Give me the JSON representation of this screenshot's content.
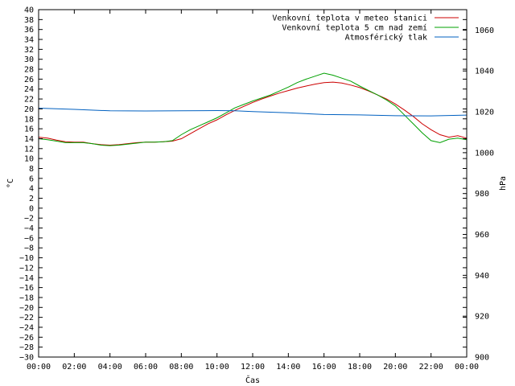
{
  "chart_data": {
    "type": "line",
    "xlabel": "Čas",
    "ylabel": "°C",
    "y2label": "hPa",
    "x_ticks": [
      "00:00",
      "02:00",
      "04:00",
      "06:00",
      "08:00",
      "10:00",
      "12:00",
      "14:00",
      "16:00",
      "18:00",
      "20:00",
      "22:00",
      "00:00"
    ],
    "xlim": [
      0,
      24
    ],
    "ylim": [
      -30,
      40
    ],
    "y_step": 2,
    "y2lim": [
      900,
      1070
    ],
    "y2_ticks": [
      900,
      920,
      940,
      960,
      980,
      1000,
      1020,
      1040,
      1060
    ],
    "legend_position": "top-right",
    "series": [
      {
        "name": "Venkovní teplota v meteo stanici",
        "axis": "y",
        "color": "#cc0000",
        "x": [
          0,
          0.5,
          1,
          1.5,
          2,
          2.5,
          3,
          3.5,
          4,
          4.5,
          5,
          5.5,
          6,
          6.5,
          7,
          7.5,
          8,
          8.5,
          9,
          9.5,
          10,
          10.5,
          11,
          11.5,
          12,
          12.5,
          13,
          13.5,
          14,
          14.5,
          15,
          15.5,
          16,
          16.5,
          17,
          17.5,
          18,
          18.5,
          19,
          19.5,
          20,
          20.5,
          21,
          21.5,
          22,
          22.5,
          23,
          23.5,
          24
        ],
        "y": [
          14.3,
          14.1,
          13.7,
          13.4,
          13.3,
          13.3,
          13.0,
          12.8,
          12.7,
          12.8,
          13.0,
          13.2,
          13.3,
          13.3,
          13.4,
          13.5,
          14.0,
          15.0,
          16.0,
          17.0,
          17.8,
          18.8,
          19.7,
          20.5,
          21.3,
          22.0,
          22.6,
          23.2,
          23.7,
          24.2,
          24.6,
          25.0,
          25.3,
          25.4,
          25.2,
          24.8,
          24.3,
          23.6,
          22.8,
          22.0,
          21.0,
          19.8,
          18.5,
          17.0,
          15.8,
          14.8,
          14.3,
          14.6,
          14.1
        ]
      },
      {
        "name": "Venkovní teplota 5 cm nad zemí",
        "axis": "y",
        "color": "#00a000",
        "x": [
          0,
          0.5,
          1,
          1.5,
          2,
          2.5,
          3,
          3.5,
          4,
          4.5,
          5,
          5.5,
          6,
          6.5,
          7,
          7.5,
          8,
          8.5,
          9,
          9.5,
          10,
          10.5,
          11,
          11.5,
          12,
          12.5,
          13,
          13.5,
          14,
          14.5,
          15,
          15.5,
          16,
          16.5,
          17,
          17.5,
          18,
          18.5,
          19,
          19.5,
          20,
          20.5,
          21,
          21.5,
          22,
          22.5,
          23,
          23.5,
          24
        ],
        "y": [
          14.0,
          13.8,
          13.5,
          13.2,
          13.2,
          13.2,
          13.0,
          12.7,
          12.6,
          12.7,
          12.9,
          13.1,
          13.3,
          13.3,
          13.4,
          13.6,
          14.8,
          15.8,
          16.6,
          17.4,
          18.2,
          19.2,
          20.2,
          20.9,
          21.6,
          22.2,
          22.8,
          23.6,
          24.4,
          25.3,
          26.0,
          26.6,
          27.2,
          26.8,
          26.2,
          25.6,
          24.6,
          23.7,
          22.8,
          21.8,
          20.6,
          18.8,
          17.0,
          15.2,
          13.6,
          13.2,
          13.9,
          14.1,
          13.8
        ]
      },
      {
        "name": "Atmosférický tlak",
        "axis": "y2",
        "color": "#0060c0",
        "x": [
          0,
          2,
          4,
          6,
          8,
          10,
          11,
          12,
          14,
          16,
          18,
          20,
          22,
          24
        ],
        "y": [
          1021.8,
          1021.2,
          1020.5,
          1020.4,
          1020.5,
          1020.6,
          1020.5,
          1020.1,
          1019.5,
          1018.7,
          1018.5,
          1018.1,
          1018.0,
          1018.4
        ]
      }
    ]
  }
}
